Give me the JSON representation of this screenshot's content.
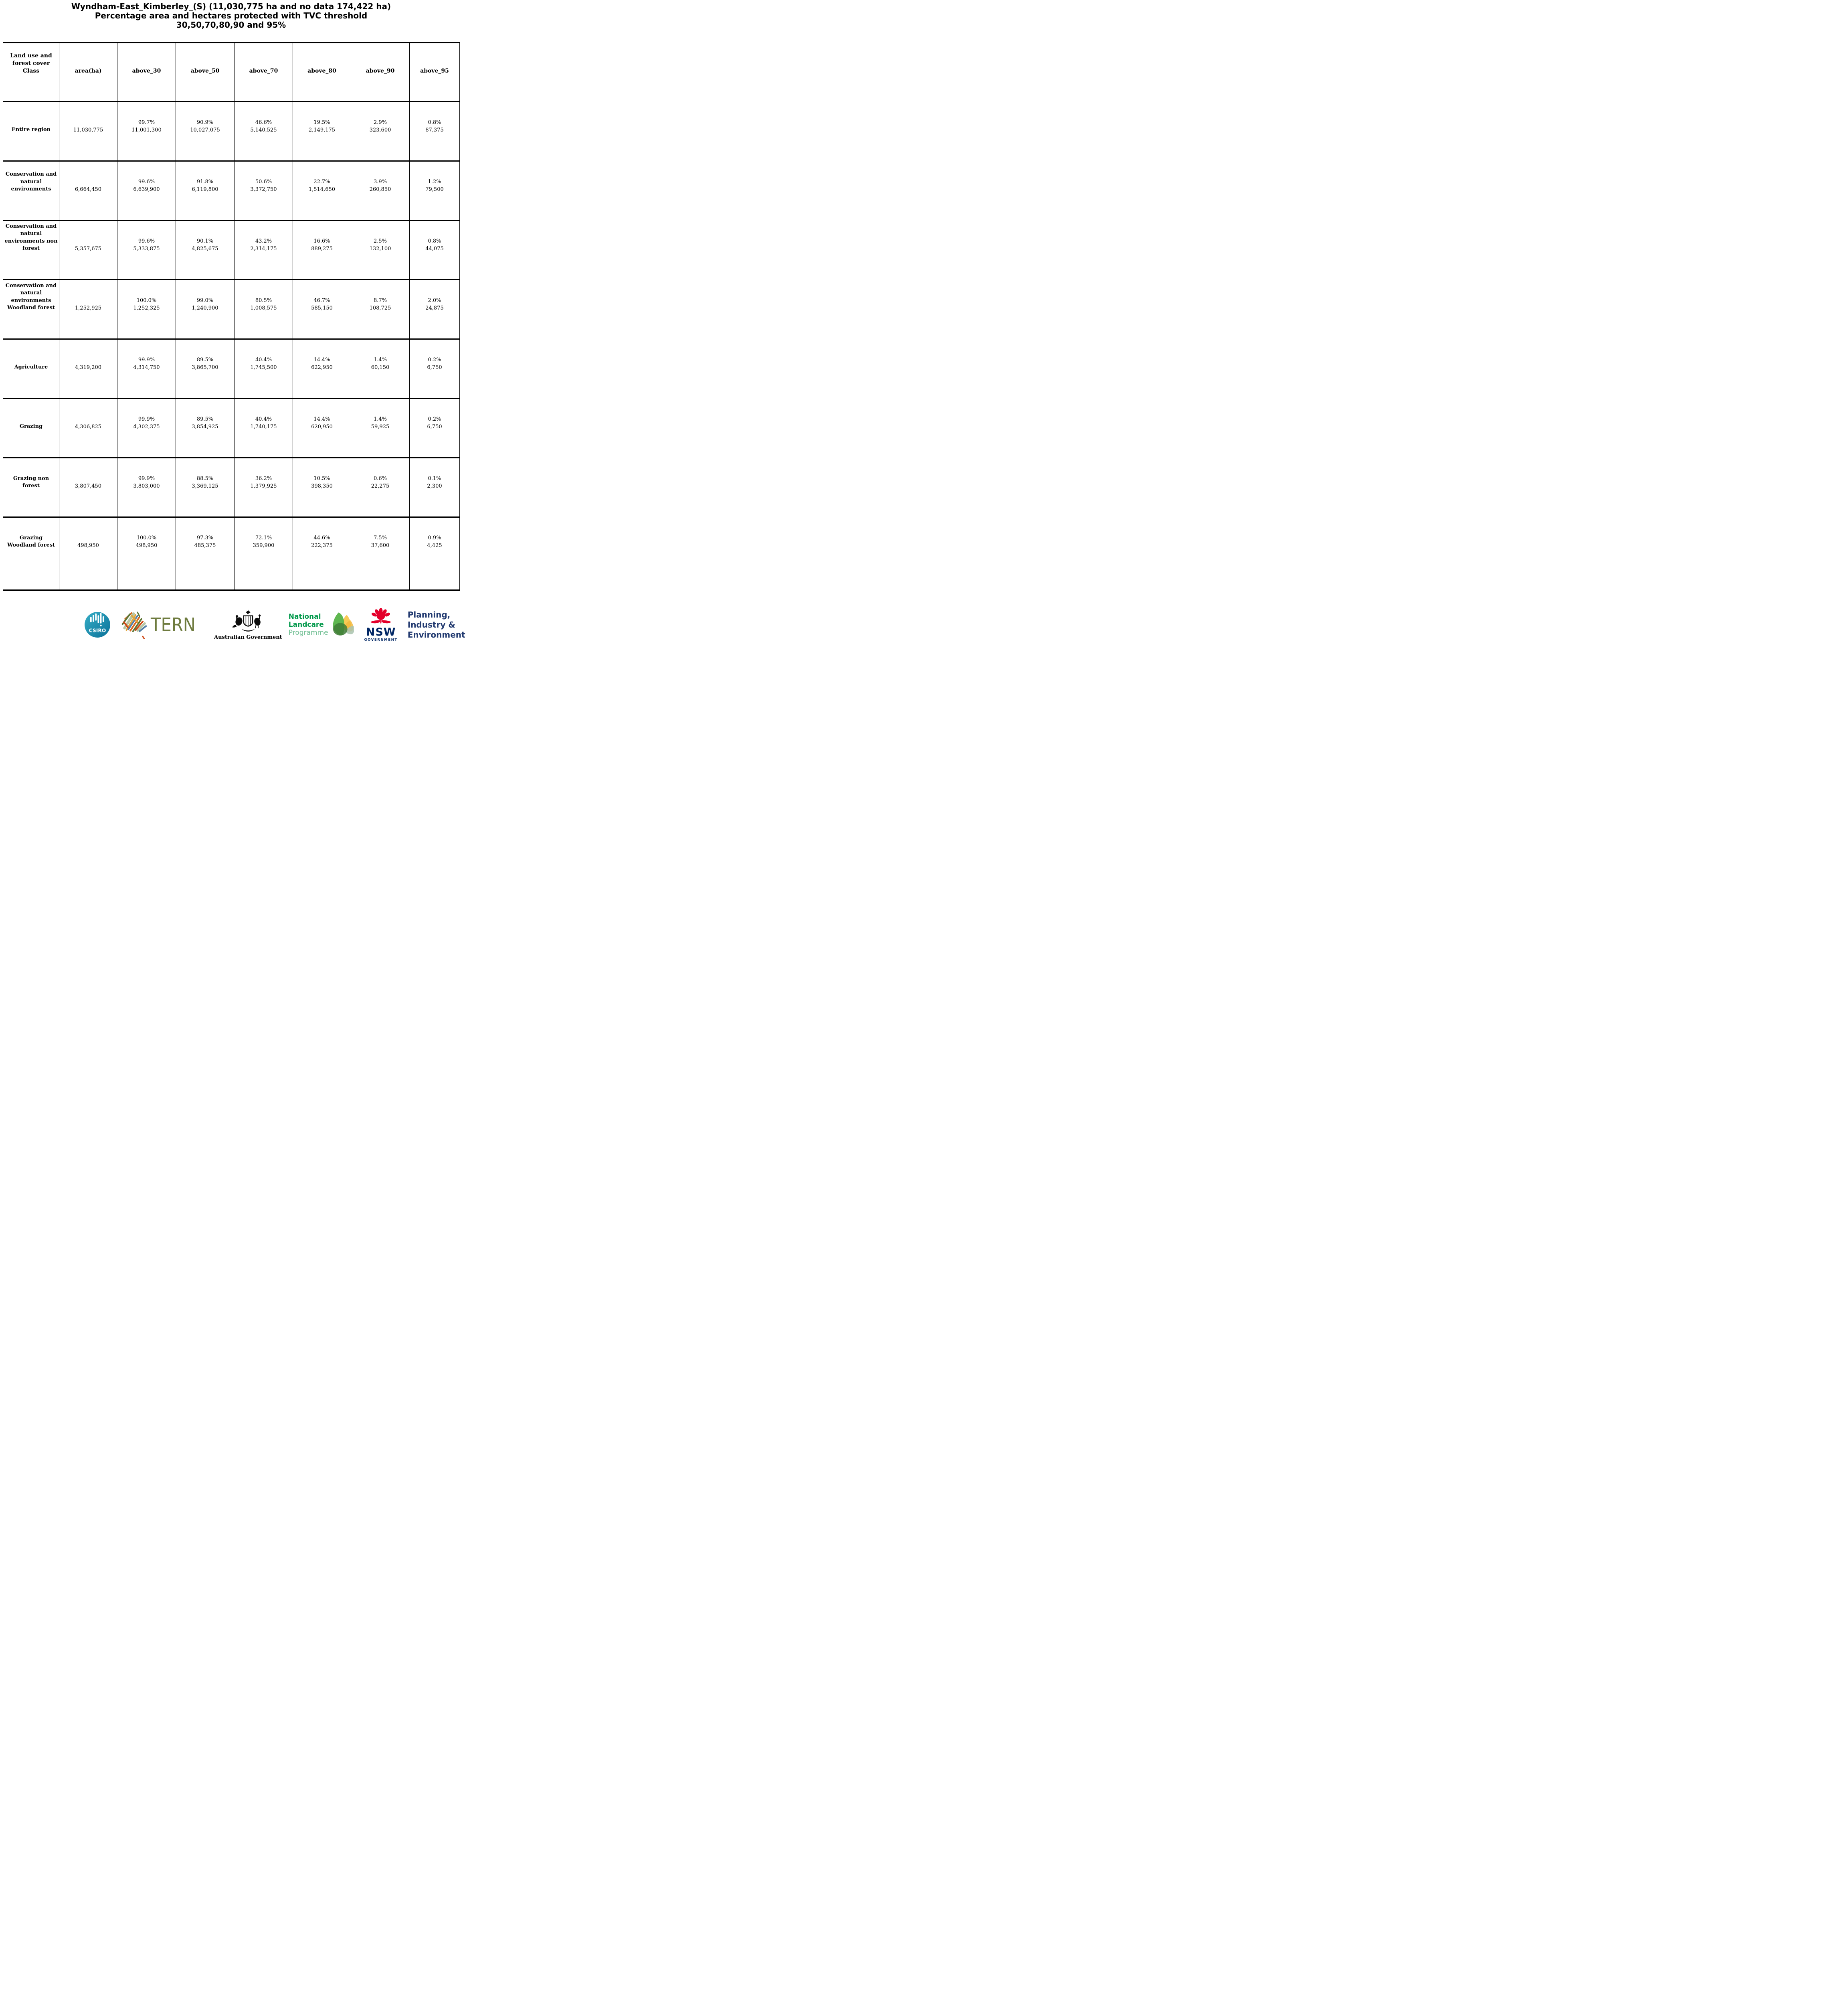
{
  "title": {
    "line1": "Wyndham-East_Kimberley_(S) (11,030,775 ha and no data 174,422 ha)",
    "line2": "Percentage area and hectares protected with TVC threshold",
    "line3": "30,50,70,80,90 and 95%"
  },
  "table": {
    "columns": [
      "Land use and forest cover Class",
      "area(ha)",
      "above_30",
      "above_50",
      "above_70",
      "above_80",
      "above_90",
      "above_95"
    ],
    "rows": [
      {
        "label": "Entire region",
        "area": "11,030,775",
        "values": [
          {
            "pct": "99.7%",
            "ha": "11,001,300"
          },
          {
            "pct": "90.9%",
            "ha": "10,027,075"
          },
          {
            "pct": "46.6%",
            "ha": "5,140,525"
          },
          {
            "pct": "19.5%",
            "ha": "2,149,175"
          },
          {
            "pct": "2.9%",
            "ha": "323,600"
          },
          {
            "pct": "0.8%",
            "ha": "87,375"
          }
        ]
      },
      {
        "label": "Conservation and natural environments",
        "area": "6,664,450",
        "values": [
          {
            "pct": "99.6%",
            "ha": "6,639,900"
          },
          {
            "pct": "91.8%",
            "ha": "6,119,800"
          },
          {
            "pct": "50.6%",
            "ha": "3,372,750"
          },
          {
            "pct": "22.7%",
            "ha": "1,514,650"
          },
          {
            "pct": "3.9%",
            "ha": "260,850"
          },
          {
            "pct": "1.2%",
            "ha": "79,500"
          }
        ]
      },
      {
        "label": "Conservation and natural environments non forest",
        "area": "5,357,675",
        "values": [
          {
            "pct": "99.6%",
            "ha": "5,333,875"
          },
          {
            "pct": "90.1%",
            "ha": "4,825,675"
          },
          {
            "pct": "43.2%",
            "ha": "2,314,175"
          },
          {
            "pct": "16.6%",
            "ha": "889,275"
          },
          {
            "pct": "2.5%",
            "ha": "132,100"
          },
          {
            "pct": "0.8%",
            "ha": "44,075"
          }
        ]
      },
      {
        "label": "Conservation and natural environments Woodland forest",
        "area": "1,252,925",
        "values": [
          {
            "pct": "100.0%",
            "ha": "1,252,325"
          },
          {
            "pct": "99.0%",
            "ha": "1,240,900"
          },
          {
            "pct": "80.5%",
            "ha": "1,008,575"
          },
          {
            "pct": "46.7%",
            "ha": "585,150"
          },
          {
            "pct": "8.7%",
            "ha": "108,725"
          },
          {
            "pct": "2.0%",
            "ha": "24,875"
          }
        ]
      },
      {
        "label": "Agriculture",
        "area": "4,319,200",
        "values": [
          {
            "pct": "99.9%",
            "ha": "4,314,750"
          },
          {
            "pct": "89.5%",
            "ha": "3,865,700"
          },
          {
            "pct": "40.4%",
            "ha": "1,745,500"
          },
          {
            "pct": "14.4%",
            "ha": "622,950"
          },
          {
            "pct": "1.4%",
            "ha": "60,150"
          },
          {
            "pct": "0.2%",
            "ha": "6,750"
          }
        ]
      },
      {
        "label": "Grazing",
        "area": "4,306,825",
        "values": [
          {
            "pct": "99.9%",
            "ha": "4,302,375"
          },
          {
            "pct": "89.5%",
            "ha": "3,854,925"
          },
          {
            "pct": "40.4%",
            "ha": "1,740,175"
          },
          {
            "pct": "14.4%",
            "ha": "620,950"
          },
          {
            "pct": "1.4%",
            "ha": "59,925"
          },
          {
            "pct": "0.2%",
            "ha": "6,750"
          }
        ]
      },
      {
        "label": "Grazing non forest",
        "area": "3,807,450",
        "values": [
          {
            "pct": "99.9%",
            "ha": "3,803,000"
          },
          {
            "pct": "88.5%",
            "ha": "3,369,125"
          },
          {
            "pct": "36.2%",
            "ha": "1,379,925"
          },
          {
            "pct": "10.5%",
            "ha": "398,350"
          },
          {
            "pct": "0.6%",
            "ha": "22,275"
          },
          {
            "pct": "0.1%",
            "ha": "2,300"
          }
        ]
      },
      {
        "label": "Grazing Woodland forest",
        "area": "498,950",
        "values": [
          {
            "pct": "100.0%",
            "ha": "498,950"
          },
          {
            "pct": "97.3%",
            "ha": "485,375"
          },
          {
            "pct": "72.1%",
            "ha": "359,900"
          },
          {
            "pct": "44.6%",
            "ha": "222,375"
          },
          {
            "pct": "7.5%",
            "ha": "37,600"
          },
          {
            "pct": "0.9%",
            "ha": "4,425"
          }
        ]
      }
    ]
  },
  "footer": {
    "csiro_label": "CSIRO",
    "tern_label": "TERN",
    "ausgov_label": "Australian Government",
    "landcare": {
      "line1": "National",
      "line2": "Landcare",
      "line3": "Programme"
    },
    "nsw_label": "NSW",
    "nsw_sub": "GOVERNMENT",
    "planning": {
      "line1": "Planning,",
      "line2": "Industry &",
      "line3": "Environment"
    }
  },
  "colors": {
    "text": "#000000",
    "background": "#ffffff",
    "csiro_teal_top": "#36aec6",
    "csiro_teal_bottom": "#0b7199",
    "tern_olive": "#6e7b3e",
    "landcare_green": "#00984a",
    "landcare_light_green": "#6fbe92",
    "landcare_leaf_green": "#56b347",
    "landcare_leaf_yellow": "#f7c444",
    "nsw_red": "#e4002b",
    "nsw_navy": "#002664",
    "planning_navy": "#223a70"
  }
}
